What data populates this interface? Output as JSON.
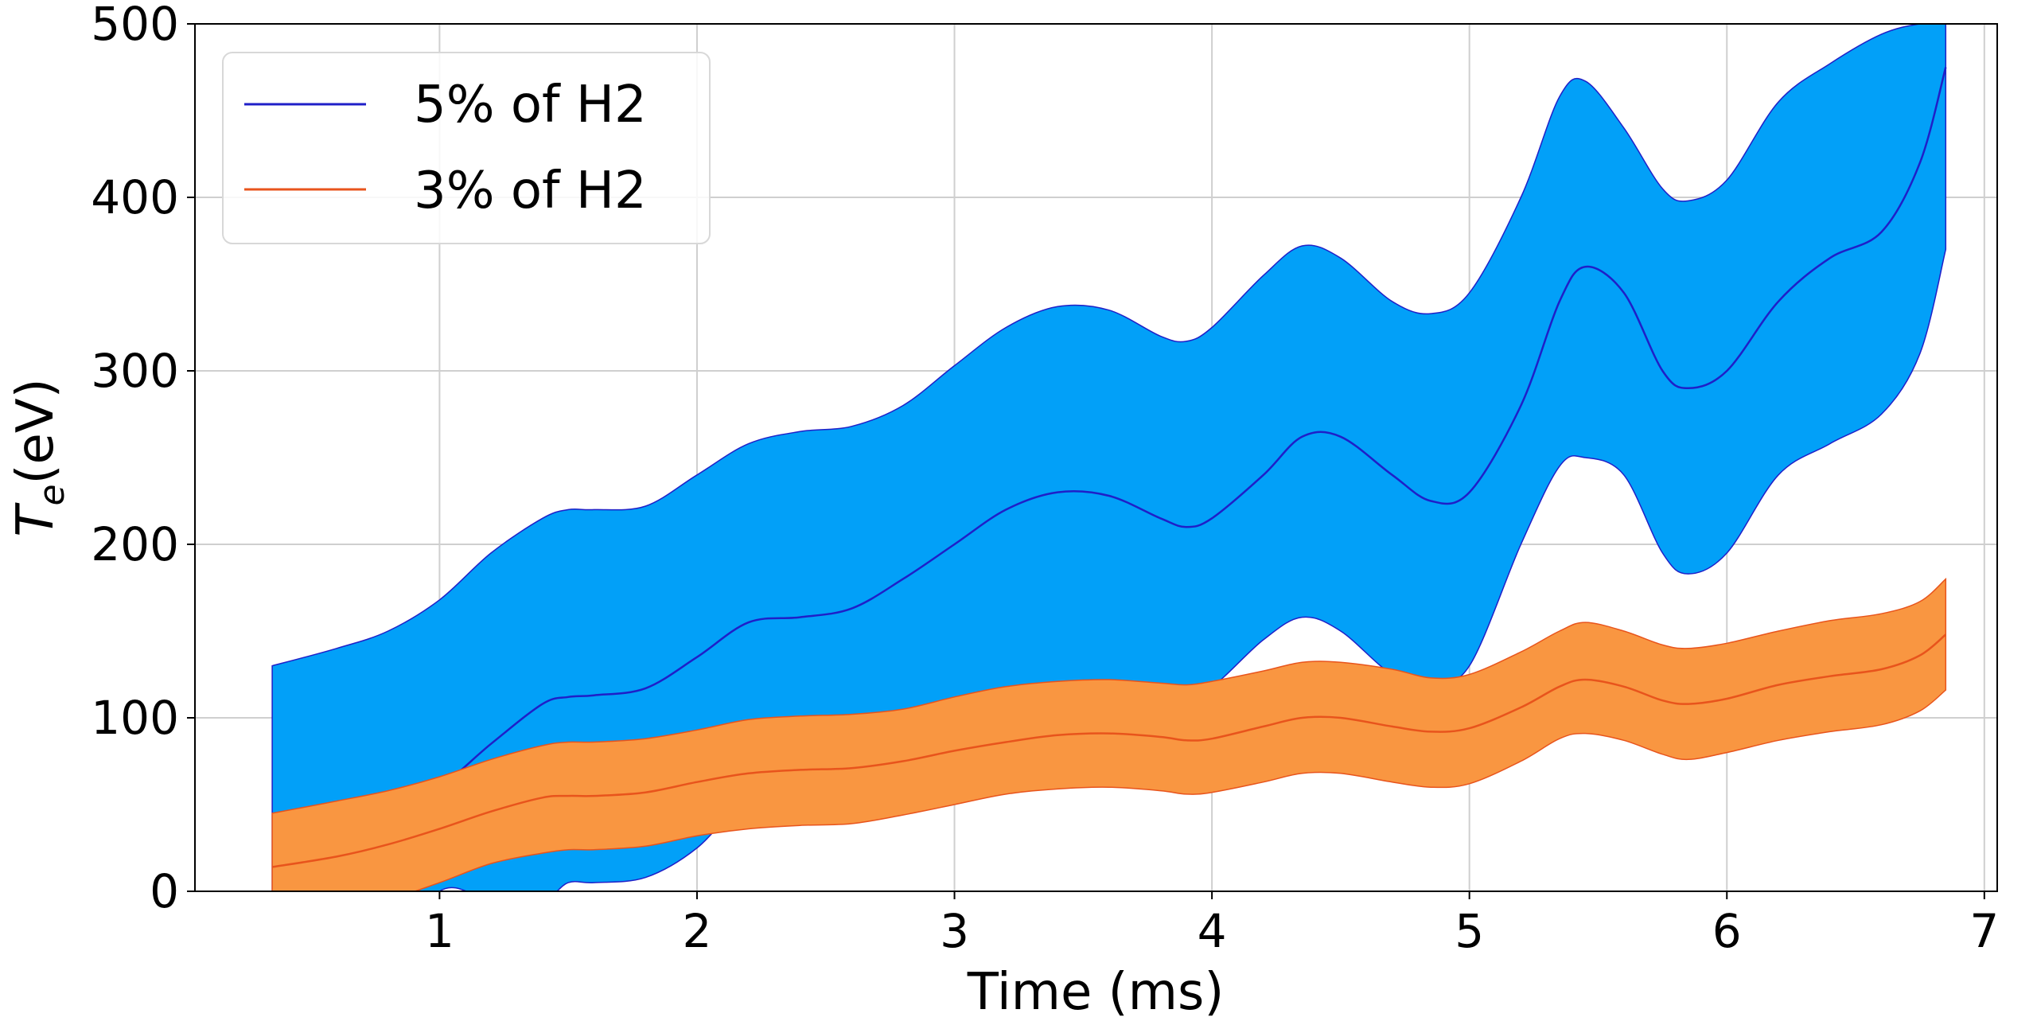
{
  "chart_data": {
    "type": "area",
    "xlabel": "Time (ms)",
    "ylabel": "T_e(eV)",
    "ylabel_main": "T",
    "ylabel_sub": "e",
    "ylabel_rest": "(eV)",
    "xlim": [
      0.05,
      7.05
    ],
    "ylim": [
      0,
      500
    ],
    "xticks": [
      1,
      2,
      3,
      4,
      5,
      6,
      7
    ],
    "yticks": [
      0,
      100,
      200,
      300,
      400,
      500
    ],
    "grid": true,
    "legend_position": "top-left",
    "series": [
      {
        "name": "5% of H2",
        "line_color": "#1f1fc8",
        "fill_color": "#02a0f8",
        "x": [
          0.35,
          0.6,
          0.8,
          1.0,
          1.2,
          1.4,
          1.5,
          1.6,
          1.8,
          2.0,
          2.2,
          2.4,
          2.6,
          2.8,
          3.0,
          3.2,
          3.4,
          3.6,
          3.8,
          3.9,
          4.0,
          4.2,
          4.35,
          4.5,
          4.7,
          4.85,
          5.0,
          5.2,
          5.35,
          5.45,
          5.6,
          5.75,
          5.85,
          6.0,
          6.2,
          6.4,
          6.6,
          6.75,
          6.85
        ],
        "mean": [
          22,
          35,
          45,
          60,
          85,
          108,
          112,
          113,
          117,
          135,
          155,
          158,
          163,
          180,
          200,
          220,
          230,
          228,
          215,
          210,
          215,
          240,
          262,
          262,
          240,
          225,
          230,
          280,
          340,
          360,
          345,
          300,
          290,
          300,
          340,
          365,
          380,
          420,
          475
        ],
        "upper": [
          130,
          140,
          150,
          168,
          195,
          215,
          220,
          220,
          222,
          240,
          258,
          265,
          268,
          280,
          303,
          325,
          337,
          335,
          320,
          317,
          325,
          355,
          372,
          365,
          340,
          333,
          345,
          400,
          458,
          467,
          440,
          405,
          398,
          410,
          455,
          477,
          494,
          500,
          500
        ],
        "lower": [
          -90,
          -70,
          -45,
          0,
          -5,
          -5,
          5,
          5,
          8,
          25,
          55,
          65,
          75,
          85,
          100,
          112,
          115,
          117,
          116,
          117,
          118,
          145,
          158,
          150,
          125,
          120,
          130,
          200,
          245,
          250,
          240,
          195,
          183,
          195,
          240,
          258,
          275,
          310,
          370
        ]
      },
      {
        "name": "3% of H2",
        "line_color": "#e8541c",
        "fill_color": "#f99641",
        "x": [
          0.35,
          0.6,
          0.8,
          1.0,
          1.2,
          1.4,
          1.5,
          1.6,
          1.8,
          2.0,
          2.2,
          2.4,
          2.6,
          2.8,
          3.0,
          3.2,
          3.4,
          3.6,
          3.8,
          3.9,
          4.0,
          4.2,
          4.35,
          4.5,
          4.7,
          4.85,
          5.0,
          5.2,
          5.35,
          5.45,
          5.6,
          5.75,
          5.85,
          6.0,
          6.2,
          6.4,
          6.6,
          6.75,
          6.85
        ],
        "mean": [
          14,
          20,
          27,
          36,
          46,
          54,
          55,
          55,
          57,
          63,
          68,
          70,
          71,
          75,
          81,
          86,
          90,
          91,
          89,
          87,
          88,
          95,
          100,
          100,
          95,
          92,
          94,
          106,
          118,
          122,
          118,
          110,
          108,
          111,
          119,
          124,
          128,
          136,
          148
        ],
        "upper": [
          45,
          52,
          58,
          66,
          76,
          84,
          86,
          86,
          88,
          93,
          99,
          101,
          102,
          105,
          112,
          118,
          121,
          122,
          120,
          119,
          121,
          127,
          132,
          132,
          128,
          123,
          125,
          138,
          150,
          155,
          150,
          142,
          140,
          143,
          150,
          156,
          160,
          167,
          180
        ],
        "lower": [
          -18,
          -12,
          -5,
          5,
          16,
          22,
          24,
          24,
          26,
          32,
          36,
          38,
          39,
          44,
          50,
          56,
          59,
          60,
          58,
          56,
          57,
          63,
          68,
          68,
          63,
          60,
          62,
          75,
          88,
          91,
          87,
          79,
          76,
          80,
          87,
          92,
          96,
          104,
          116
        ]
      }
    ]
  }
}
